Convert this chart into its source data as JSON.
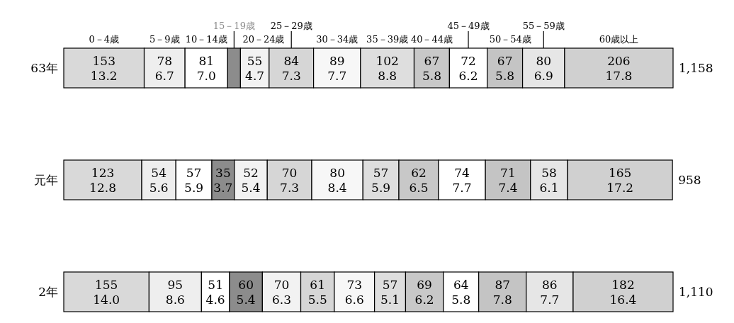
{
  "chart_data": {
    "type": "bar",
    "orientation": "horizontal",
    "stacked": true,
    "legend": "top",
    "categories": [
      "63年",
      "元年",
      "2年"
    ],
    "annotations": [
      "1,158",
      "958",
      "1,110"
    ],
    "series": [
      {
        "name": "0－4歳",
        "color": "#d9d9d9",
        "values": [
          13.2,
          12.8,
          14.0
        ],
        "value_labels": [
          "153\n13.2",
          "123\n12.8",
          "155\n14.0"
        ]
      },
      {
        "name": "5－9歳",
        "color": "#eeeeee",
        "values": [
          6.7,
          5.6,
          8.6
        ],
        "value_labels": [
          "78\n6.7",
          "54\n5.6",
          "95\n8.6"
        ]
      },
      {
        "name": "10－14歳",
        "color": "#ffffff",
        "values": [
          7.0,
          5.9,
          4.6
        ],
        "value_labels": [
          "81\n7.0",
          "57\n5.9",
          "51\n4.6"
        ]
      },
      {
        "name": "15－19歳",
        "color": "#8c8c8c",
        "values": [
          2.1,
          3.7,
          5.4
        ],
        "value_labels": [
          null,
          "35\n3.7",
          "60\n5.4"
        ]
      },
      {
        "name": "20－24歳",
        "color": "#f2f2f2",
        "values": [
          4.7,
          5.4,
          6.3
        ],
        "value_labels": [
          "55\n4.7",
          "52\n5.4",
          "70\n6.3"
        ]
      },
      {
        "name": "25－29歳",
        "color": "#d6d6d6",
        "values": [
          7.3,
          7.3,
          5.5
        ],
        "value_labels": [
          "84\n7.3",
          "70\n7.3",
          "61\n5.5"
        ]
      },
      {
        "name": "30－34歳",
        "color": "#f7f7f7",
        "values": [
          7.7,
          8.4,
          6.6
        ],
        "value_labels": [
          "89\n7.7",
          "80\n8.4",
          "73\n6.6"
        ]
      },
      {
        "name": "35－39歳",
        "color": "#dedede",
        "values": [
          8.8,
          5.9,
          5.1
        ],
        "value_labels": [
          "102\n8.8",
          "57\n5.9",
          "57\n5.1"
        ]
      },
      {
        "name": "40－44歳",
        "color": "#c8c8c8",
        "values": [
          5.8,
          6.5,
          6.2
        ],
        "value_labels": [
          "67\n5.8",
          "62\n6.5",
          "69\n6.2"
        ]
      },
      {
        "name": "45－49歳",
        "color": "#ffffff",
        "values": [
          6.2,
          7.7,
          5.8
        ],
        "value_labels": [
          "72\n6.2",
          "74\n7.7",
          "64\n5.8"
        ]
      },
      {
        "name": "50－54歳",
        "color": "#c4c4c4",
        "values": [
          5.8,
          7.4,
          7.8
        ],
        "value_labels": [
          "67\n5.8",
          "71\n7.4",
          "87\n7.8"
        ]
      },
      {
        "name": "55－59歳",
        "color": "#e6e6e6",
        "values": [
          6.9,
          6.1,
          7.7
        ],
        "value_labels": [
          "80\n6.9",
          "58\n6.1",
          "86\n7.7"
        ]
      },
      {
        "name": "60歳以上",
        "color": "#d0d0d0",
        "values": [
          17.8,
          17.2,
          16.4
        ],
        "value_labels": [
          "206\n17.8",
          "165\n17.2",
          "182\n16.4"
        ]
      }
    ]
  }
}
